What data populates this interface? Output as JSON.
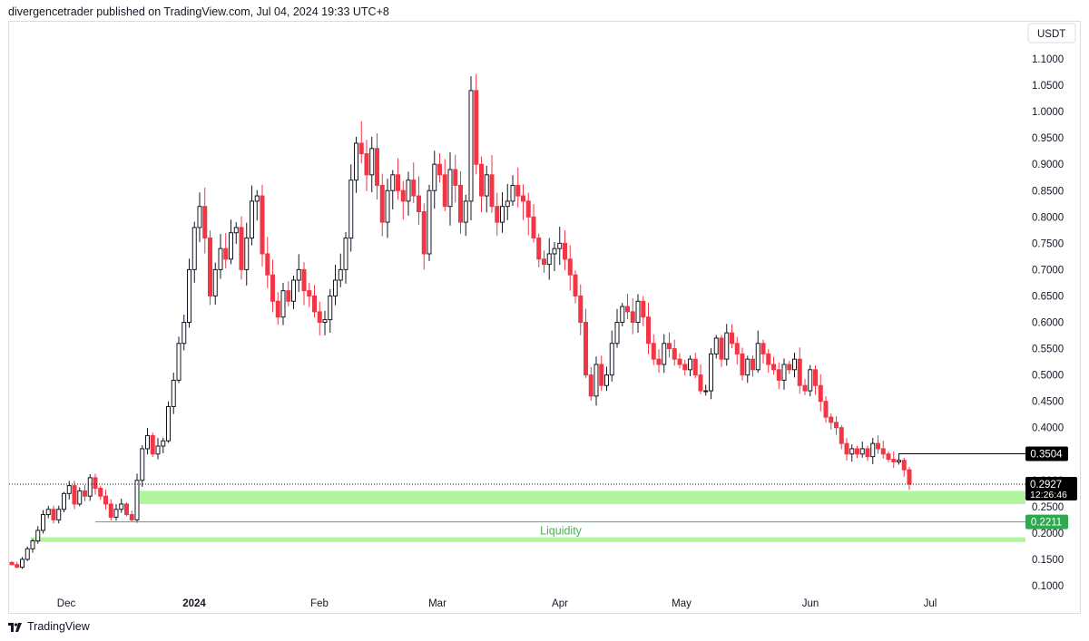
{
  "header": {
    "published_text": "divergencetrader published on TradingView.com, Jul 04, 2024 19:33 UTC+8"
  },
  "footer": {
    "brand": "TradingView",
    "logo_icon": "tradingview-logo-icon"
  },
  "chart_data": {
    "type": "candlestick",
    "currency": "USDT",
    "y_axis": {
      "range": [
        0.08,
        1.15
      ],
      "ticks": [
        "0.1000",
        "0.1500",
        "0.2000",
        "0.2500",
        "0.3000",
        "0.3500",
        "0.4000",
        "0.4500",
        "0.5000",
        "0.5500",
        "0.6000",
        "0.6500",
        "0.7000",
        "0.7500",
        "0.8000",
        "0.8500",
        "0.9000",
        "0.9500",
        "1.0000",
        "1.0500",
        "1.1000"
      ]
    },
    "x_axis": {
      "labels": [
        {
          "text": "Dec",
          "bold": false
        },
        {
          "text": "2024",
          "bold": true
        },
        {
          "text": "Feb",
          "bold": false
        },
        {
          "text": "Mar",
          "bold": false
        },
        {
          "text": "Apr",
          "bold": false
        },
        {
          "text": "May",
          "bold": false
        },
        {
          "text": "Jun",
          "bold": false
        },
        {
          "text": "Jul",
          "bold": false
        }
      ]
    },
    "closes": [
      0.14,
      0.135,
      0.15,
      0.17,
      0.185,
      0.205,
      0.235,
      0.245,
      0.225,
      0.245,
      0.275,
      0.29,
      0.255,
      0.28,
      0.27,
      0.305,
      0.285,
      0.27,
      0.255,
      0.23,
      0.245,
      0.255,
      0.235,
      0.225,
      0.3,
      0.36,
      0.385,
      0.35,
      0.365,
      0.375,
      0.44,
      0.49,
      0.56,
      0.6,
      0.7,
      0.78,
      0.82,
      0.76,
      0.65,
      0.7,
      0.74,
      0.72,
      0.77,
      0.78,
      0.7,
      0.76,
      0.83,
      0.84,
      0.73,
      0.69,
      0.64,
      0.61,
      0.66,
      0.64,
      0.68,
      0.7,
      0.66,
      0.65,
      0.62,
      0.6,
      0.605,
      0.65,
      0.68,
      0.7,
      0.76,
      0.87,
      0.94,
      0.92,
      0.88,
      0.93,
      0.86,
      0.79,
      0.85,
      0.88,
      0.85,
      0.83,
      0.87,
      0.84,
      0.81,
      0.73,
      0.85,
      0.9,
      0.88,
      0.82,
      0.89,
      0.86,
      0.79,
      0.83,
      1.04,
      0.9,
      0.84,
      0.88,
      0.82,
      0.79,
      0.82,
      0.83,
      0.86,
      0.84,
      0.83,
      0.8,
      0.76,
      0.72,
      0.71,
      0.73,
      0.74,
      0.75,
      0.72,
      0.69,
      0.65,
      0.6,
      0.5,
      0.46,
      0.52,
      0.48,
      0.5,
      0.56,
      0.6,
      0.63,
      0.62,
      0.6,
      0.64,
      0.61,
      0.56,
      0.53,
      0.52,
      0.56,
      0.55,
      0.53,
      0.52,
      0.51,
      0.53,
      0.5,
      0.47,
      0.47,
      0.54,
      0.57,
      0.53,
      0.58,
      0.56,
      0.54,
      0.5,
      0.53,
      0.51,
      0.56,
      0.54,
      0.52,
      0.51,
      0.49,
      0.52,
      0.51,
      0.53,
      0.48,
      0.47,
      0.51,
      0.48,
      0.45,
      0.42,
      0.41,
      0.4,
      0.37,
      0.35,
      0.36,
      0.35,
      0.36,
      0.345,
      0.37,
      0.36,
      0.35,
      0.34,
      0.335,
      0.338,
      0.32,
      0.2927
    ],
    "last_price": {
      "value": 0.2927,
      "label": "0.2927",
      "countdown": "12:26:46"
    },
    "horizontal_levels": [
      {
        "value": 0.3504,
        "label": "0.3504",
        "color": "#000000",
        "label_bg": "#000000"
      },
      {
        "value": 0.2211,
        "label": "0.2211",
        "color": "#4caf50",
        "label_bg": "#2fa84f"
      }
    ],
    "zones": [
      {
        "from": 0.255,
        "to": 0.28,
        "color": "#b2f5a0"
      },
      {
        "from": 0.183,
        "to": 0.192,
        "color": "#b2f5a0",
        "label": "Liquidity",
        "label_color": "#4caf50"
      }
    ],
    "colors": {
      "up": "#131722",
      "down": "#f23645",
      "down_wick": "#f23645"
    }
  }
}
